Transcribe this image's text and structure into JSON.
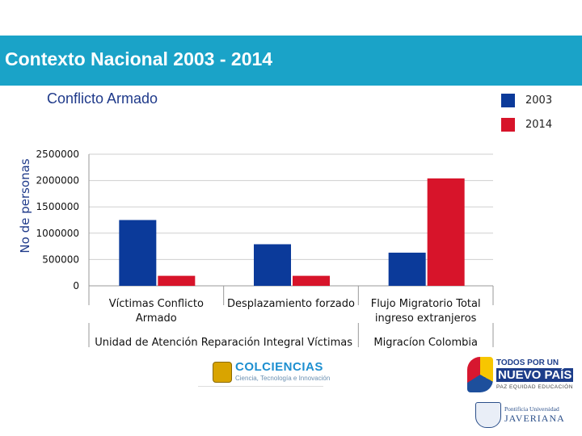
{
  "header": {
    "title": "Contexto Nacional 2003 - 2014"
  },
  "colors": {
    "banner": "#1aa3c8",
    "series_2003": "#0b3a9a",
    "series_2014": "#d7142a",
    "subtitle": "#1f3a8a"
  },
  "chart_data": {
    "type": "bar",
    "title": "Conflicto Armado",
    "ylabel": "No de personas",
    "xlabel": "",
    "ylim": [
      0,
      2500000
    ],
    "yticks": [
      "0",
      "500000",
      "1000000",
      "1500000",
      "2000000",
      "2500000"
    ],
    "categories": [
      "Víctimas Conflicto Armado",
      "Desplazamiento forzado",
      "Flujo Migratorio Total ingreso extranjeros"
    ],
    "groups": [
      "Unidad de Atención Reparación Integral Víctimas",
      "Migracíon Colombia"
    ],
    "series": [
      {
        "name": "2003",
        "values": [
          1250000,
          790000,
          630000
        ]
      },
      {
        "name": "2014",
        "values": [
          190000,
          190000,
          2040000
        ]
      }
    ],
    "legend": "top-right",
    "grid": true
  },
  "logos": {
    "colciencias": {
      "name": "COLCIENCIAS",
      "tagline": "Ciencia, Tecnología e Innovación"
    },
    "todos": {
      "line1": "TODOS POR UN",
      "line2": "NUEVO PAÍS",
      "line3": "PAZ  EQUIDAD  EDUCACIÓN"
    },
    "javeriana": {
      "line1": "Pontificia Universidad",
      "line2": "JAVERIANA"
    }
  }
}
